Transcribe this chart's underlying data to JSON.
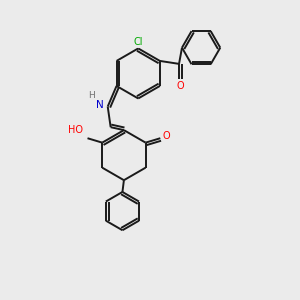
{
  "background_color": "#ebebeb",
  "bond_color": "#1a1a1a",
  "atom_colors": {
    "O": "#ff0000",
    "N": "#0000cc",
    "Cl": "#00aa00",
    "H": "#707070",
    "C": "#1a1a1a"
  },
  "figsize": [
    3.0,
    3.0
  ],
  "dpi": 100,
  "lw": 1.4
}
